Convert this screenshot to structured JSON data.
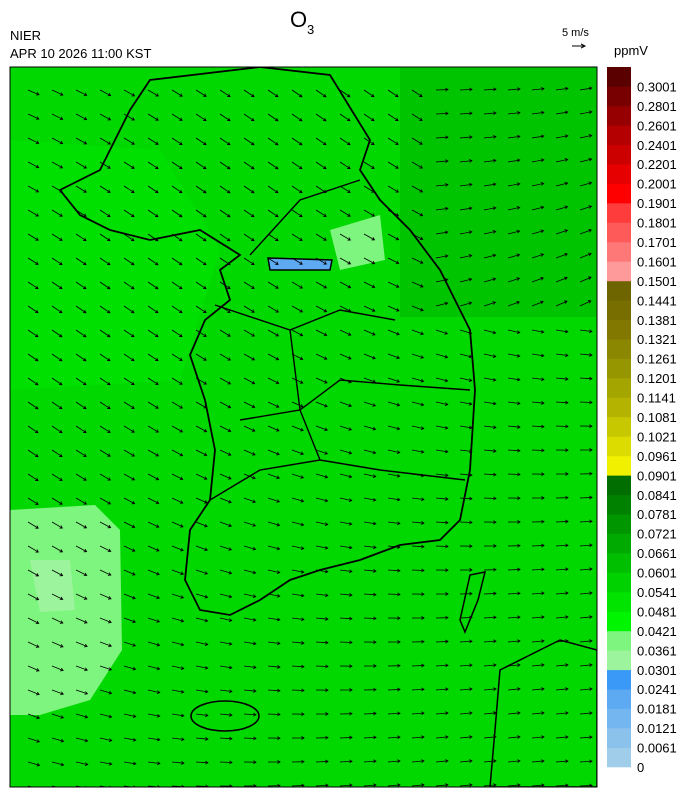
{
  "header": {
    "agency": "NIER",
    "datetime": "APR 10 2026 11:00 KST",
    "title": {
      "main": "O",
      "subscript": "3"
    }
  },
  "wind_legend": {
    "label": "5 m/s"
  },
  "colorbar": {
    "unit": "ppmV",
    "levels": [
      {
        "label": "0",
        "color": "#a0cdea"
      },
      {
        "label": "0.0061",
        "color": "#8ac2ec"
      },
      {
        "label": "0.0121",
        "color": "#74b6ef"
      },
      {
        "label": "0.0181",
        "color": "#5eaaf2"
      },
      {
        "label": "0.0241",
        "color": "#3a98f6"
      },
      {
        "label": "0.0301",
        "color": "#9cf59c"
      },
      {
        "label": "0.0361",
        "color": "#7ef57e"
      },
      {
        "label": "0.0421",
        "color": "#00f500"
      },
      {
        "label": "0.0481",
        "color": "#00e400"
      },
      {
        "label": "0.0541",
        "color": "#00d200"
      },
      {
        "label": "0.0601",
        "color": "#00be00"
      },
      {
        "label": "0.0661",
        "color": "#00aa00"
      },
      {
        "label": "0.0721",
        "color": "#009600"
      },
      {
        "label": "0.0781",
        "color": "#008200"
      },
      {
        "label": "0.0841",
        "color": "#006e00"
      },
      {
        "label": "0.0901",
        "color": "#f0f000"
      },
      {
        "label": "0.0961",
        "color": "#dcdc00"
      },
      {
        "label": "0.1021",
        "color": "#c8c800"
      },
      {
        "label": "0.1081",
        "color": "#b4b400"
      },
      {
        "label": "0.1141",
        "color": "#a5a500"
      },
      {
        "label": "0.1201",
        "color": "#969600"
      },
      {
        "label": "0.1261",
        "color": "#8c8700"
      },
      {
        "label": "0.1321",
        "color": "#827800"
      },
      {
        "label": "0.1381",
        "color": "#786e00"
      },
      {
        "label": "0.1441",
        "color": "#6e6400"
      },
      {
        "label": "0.1501",
        "color": "#ff9a9a"
      },
      {
        "label": "0.1601",
        "color": "#ff7878"
      },
      {
        "label": "0.1701",
        "color": "#ff5a5a"
      },
      {
        "label": "0.1801",
        "color": "#ff3c3c"
      },
      {
        "label": "0.1901",
        "color": "#ff0000"
      },
      {
        "label": "0.2001",
        "color": "#e60000"
      },
      {
        "label": "0.2201",
        "color": "#cd0000"
      },
      {
        "label": "0.2401",
        "color": "#b40000"
      },
      {
        "label": "0.2601",
        "color": "#960000"
      },
      {
        "label": "0.2801",
        "color": "#780000"
      },
      {
        "label": "0.3001",
        "color": "#5a0000"
      }
    ]
  }
}
